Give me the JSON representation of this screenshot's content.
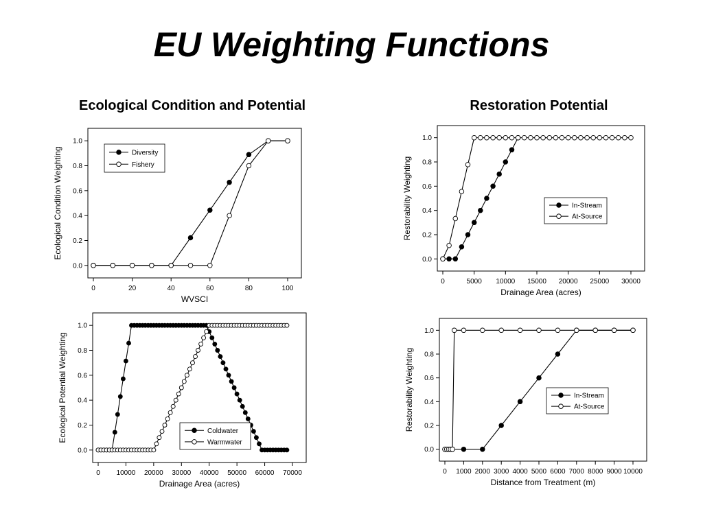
{
  "slide": {
    "title": "EU Weighting Functions",
    "left_heading": "Ecological Condition and Potential",
    "right_heading": "Restoration Potential"
  },
  "chart_data": [
    {
      "id": "ecological-condition",
      "type": "line",
      "xlabel": "WVSCI",
      "ylabel": "Ecological Condition Weighting",
      "xlim": [
        0,
        100
      ],
      "ylim": [
        0,
        1
      ],
      "xticks": [
        0,
        20,
        40,
        60,
        80,
        100
      ],
      "yticks": [
        0.0,
        0.2,
        0.4,
        0.6,
        0.8,
        1.0
      ],
      "legend": "top-left",
      "series": [
        {
          "name": "Diversity",
          "marker": "filled",
          "x": [
            0,
            10,
            20,
            30,
            40,
            50,
            60,
            70,
            80,
            90,
            100
          ],
          "y": [
            0,
            0,
            0,
            0,
            0,
            0.222,
            0.444,
            0.667,
            0.889,
            1.0,
            1.0
          ]
        },
        {
          "name": "Fishery",
          "marker": "open",
          "x": [
            0,
            10,
            20,
            30,
            40,
            50,
            60,
            70,
            80,
            90,
            100
          ],
          "y": [
            0,
            0,
            0,
            0,
            0,
            0,
            0,
            0.4,
            0.8,
            1.0,
            1.0
          ]
        }
      ]
    },
    {
      "id": "restoration-drainage",
      "type": "line",
      "xlabel": "Drainage Area (acres)",
      "ylabel": "Restorability Weighting",
      "xlim": [
        0,
        30000
      ],
      "ylim": [
        0,
        1
      ],
      "xticks": [
        0,
        5000,
        10000,
        15000,
        20000,
        25000,
        30000
      ],
      "yticks": [
        0.0,
        0.2,
        0.4,
        0.6,
        0.8,
        1.0
      ],
      "legend": "center-right",
      "series": [
        {
          "name": "In-Stream",
          "marker": "filled",
          "x": [
            0,
            1000,
            2000,
            3000,
            4000,
            5000,
            6000,
            7000,
            8000,
            9000,
            10000,
            11000,
            12000
          ],
          "y": [
            0,
            0,
            0,
            0.1,
            0.2,
            0.3,
            0.4,
            0.5,
            0.6,
            0.7,
            0.8,
            0.9,
            1.0
          ]
        },
        {
          "name": "At-Source",
          "marker": "open",
          "x": [
            0,
            1000,
            2000,
            3000,
            4000,
            5000,
            6000,
            7000,
            8000,
            9000,
            10000,
            11000,
            12000,
            13000,
            14000,
            15000,
            16000,
            17000,
            18000,
            19000,
            20000,
            21000,
            22000,
            23000,
            24000,
            25000,
            26000,
            27000,
            28000,
            29000,
            30000
          ],
          "y": [
            0,
            0.111,
            0.333,
            0.556,
            0.778,
            1.0,
            1.0,
            1.0,
            1.0,
            1.0,
            1.0,
            1.0,
            1.0,
            1.0,
            1.0,
            1.0,
            1.0,
            1.0,
            1.0,
            1.0,
            1.0,
            1.0,
            1.0,
            1.0,
            1.0,
            1.0,
            1.0,
            1.0,
            1.0,
            1.0,
            1.0
          ]
        }
      ]
    },
    {
      "id": "ecological-potential",
      "type": "line",
      "xlabel": "Drainage Area (acres)",
      "ylabel": "Ecological Potential Weighting",
      "xlim": [
        0,
        70000
      ],
      "ylim": [
        0,
        1
      ],
      "xticks": [
        0,
        10000,
        20000,
        30000,
        40000,
        50000,
        60000,
        70000
      ],
      "yticks": [
        0.0,
        0.2,
        0.4,
        0.6,
        0.8,
        1.0
      ],
      "legend": "bottom-center",
      "series": [
        {
          "name": "Coldwater",
          "marker": "filled",
          "x": [
            0,
            1000,
            2000,
            3000,
            4000,
            5000,
            6000,
            7000,
            8000,
            9000,
            10000,
            11000,
            12000,
            13000,
            14000,
            15000,
            16000,
            17000,
            18000,
            19000,
            20000,
            21000,
            22000,
            23000,
            24000,
            25000,
            26000,
            27000,
            28000,
            29000,
            30000,
            31000,
            32000,
            33000,
            34000,
            35000,
            36000,
            37000,
            38000,
            39000,
            40000,
            41000,
            42000,
            43000,
            44000,
            45000,
            46000,
            47000,
            48000,
            49000,
            50000,
            51000,
            52000,
            53000,
            54000,
            55000,
            56000,
            57000,
            58000,
            59000,
            60000,
            61000,
            62000,
            63000,
            64000,
            65000,
            66000,
            67000,
            68000
          ],
          "y": [
            0,
            0,
            0,
            0,
            0,
            0,
            0.143,
            0.286,
            0.429,
            0.571,
            0.714,
            0.857,
            1.0,
            1.0,
            1.0,
            1.0,
            1.0,
            1.0,
            1.0,
            1.0,
            1.0,
            1.0,
            1.0,
            1.0,
            1.0,
            1.0,
            1.0,
            1.0,
            1.0,
            1.0,
            1.0,
            1.0,
            1.0,
            1.0,
            1.0,
            1.0,
            1.0,
            1.0,
            1.0,
            1.0,
            0.95,
            0.9,
            0.85,
            0.8,
            0.75,
            0.7,
            0.65,
            0.6,
            0.55,
            0.5,
            0.45,
            0.4,
            0.35,
            0.3,
            0.25,
            0.2,
            0.15,
            0.1,
            0.05,
            0,
            0,
            0,
            0,
            0,
            0,
            0,
            0,
            0,
            0
          ]
        },
        {
          "name": "Warmwater",
          "marker": "open",
          "x": [
            0,
            1000,
            2000,
            3000,
            4000,
            5000,
            6000,
            7000,
            8000,
            9000,
            10000,
            11000,
            12000,
            13000,
            14000,
            15000,
            16000,
            17000,
            18000,
            19000,
            20000,
            21000,
            22000,
            23000,
            24000,
            25000,
            26000,
            27000,
            28000,
            29000,
            30000,
            31000,
            32000,
            33000,
            34000,
            35000,
            36000,
            37000,
            38000,
            39000,
            40000,
            41000,
            42000,
            43000,
            44000,
            45000,
            46000,
            47000,
            48000,
            49000,
            50000,
            51000,
            52000,
            53000,
            54000,
            55000,
            56000,
            57000,
            58000,
            59000,
            60000,
            61000,
            62000,
            63000,
            64000,
            65000,
            66000,
            67000,
            68000
          ],
          "y": [
            0,
            0,
            0,
            0,
            0,
            0,
            0,
            0,
            0,
            0,
            0,
            0,
            0,
            0,
            0,
            0,
            0,
            0,
            0,
            0,
            0,
            0.05,
            0.1,
            0.15,
            0.2,
            0.25,
            0.3,
            0.35,
            0.4,
            0.45,
            0.5,
            0.55,
            0.6,
            0.65,
            0.7,
            0.75,
            0.8,
            0.85,
            0.9,
            0.95,
            1.0,
            1.0,
            1.0,
            1.0,
            1.0,
            1.0,
            1.0,
            1.0,
            1.0,
            1.0,
            1.0,
            1.0,
            1.0,
            1.0,
            1.0,
            1.0,
            1.0,
            1.0,
            1.0,
            1.0,
            1.0,
            1.0,
            1.0,
            1.0,
            1.0,
            1.0,
            1.0,
            1.0,
            1.0
          ]
        }
      ]
    },
    {
      "id": "restoration-distance",
      "type": "line",
      "xlabel": "Distance from Treatment (m)",
      "ylabel": "Restorability Weighting",
      "xlim": [
        0,
        10000
      ],
      "ylim": [
        0,
        1
      ],
      "xticks": [
        0,
        1000,
        2000,
        3000,
        4000,
        5000,
        6000,
        7000,
        8000,
        9000,
        10000
      ],
      "yticks": [
        0.0,
        0.2,
        0.4,
        0.6,
        0.8,
        1.0
      ],
      "legend": "center-right",
      "series": [
        {
          "name": "In-Stream",
          "marker": "filled",
          "x": [
            0,
            100,
            200,
            300,
            400,
            1000,
            2000,
            3000,
            4000,
            5000,
            6000,
            7000,
            8000,
            9000,
            10000
          ],
          "y": [
            0,
            0,
            0,
            0,
            0,
            0,
            0,
            0.2,
            0.4,
            0.6,
            0.8,
            1.0,
            1.0,
            1.0,
            1.0
          ]
        },
        {
          "name": "At-Source",
          "marker": "open",
          "x": [
            0,
            100,
            200,
            300,
            400,
            500,
            1000,
            2000,
            3000,
            4000,
            5000,
            6000,
            7000,
            8000,
            9000,
            10000
          ],
          "y": [
            0,
            0,
            0,
            0,
            0,
            1.0,
            1.0,
            1.0,
            1.0,
            1.0,
            1.0,
            1.0,
            1.0,
            1.0,
            1.0,
            1.0
          ]
        }
      ]
    }
  ]
}
